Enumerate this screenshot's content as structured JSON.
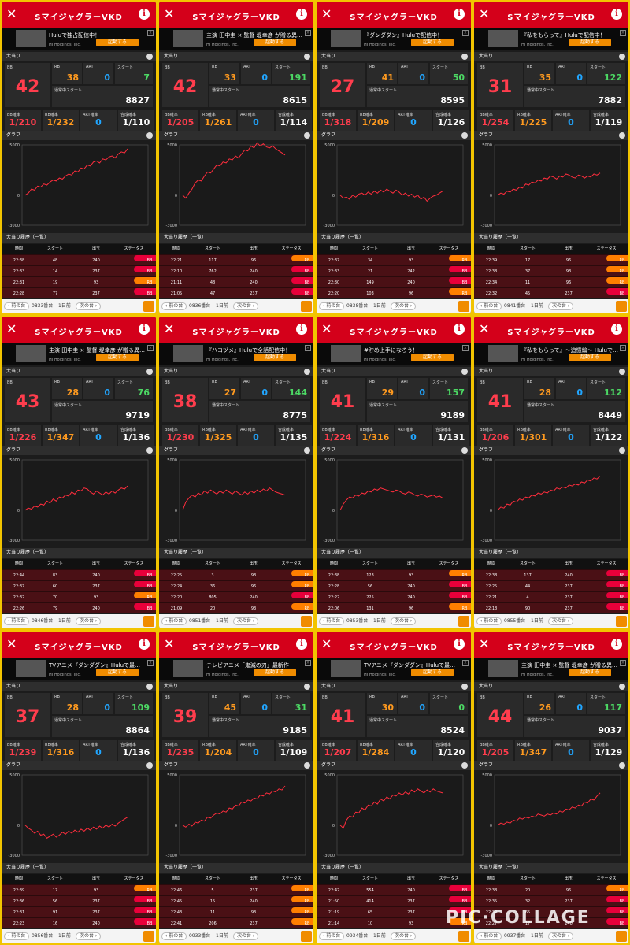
{
  "colors": {
    "header": "#d4001a",
    "bb": "#ff3d4d",
    "rb": "#ff9a1f",
    "art": "#21a6ff",
    "start": "#4cd964",
    "total": "#ffffff",
    "line": "#ff2d3d",
    "rb_badge": "#ff7f00",
    "bb_badge": "#e8003a"
  },
  "labels": {
    "title": "SマイジャグラーVKD",
    "close": "✕",
    "info": "i",
    "sec_hit": "大当り",
    "sec_graph": "グラフ",
    "sec_hist": "大当り履歴（一覧）",
    "bb": "BB",
    "rb": "RB",
    "art": "ART",
    "start": "スタート",
    "normal_start": "通常中スタート",
    "bb_rate": "BB確率",
    "rb_rate": "RB確率",
    "art_rate": "ART確率",
    "total_rate": "合成確率",
    "col_time": "時間",
    "col_start": "スタート",
    "col_out": "出玉",
    "col_status": "ステータス",
    "prev": "前の台",
    "next": "次の台",
    "day": "1日前",
    "ad_source": "HJ Holdings, Inc.",
    "ad_button": "起動する",
    "y_top": "5000",
    "y_zero": "0",
    "y_bottom": "-3000"
  },
  "watermark": "PIC·COLLAGE",
  "panels": [
    {
      "ad": "Huluで独占配信中！",
      "bb": "42",
      "rb": "38",
      "art": "0",
      "start": "7",
      "normal": "8827",
      "bbr": "1/210",
      "rbr": "1/232",
      "artr": "0",
      "total": "1/110",
      "machine": "0833番台",
      "graph": [
        0,
        200,
        600,
        500,
        900,
        800,
        1100,
        1000,
        1300,
        1500,
        1400,
        1700,
        1600,
        1900,
        2100,
        2000,
        2400,
        2300,
        2700,
        2600,
        3000,
        2900,
        3300,
        3400,
        3200,
        3600,
        3500,
        3800,
        3900,
        3700,
        4100,
        4300,
        4200,
        4600
      ],
      "rows": [
        [
          "22:38",
          "48",
          "240",
          "BB"
        ],
        [
          "22:33",
          "14",
          "237",
          "BB"
        ],
        [
          "22:31",
          "19",
          "93",
          "RB"
        ],
        [
          "22:28",
          "77",
          "237",
          "BB"
        ]
      ]
    },
    {
      "ad": "主演 田中圭 × 監督 堤幸彦 が贈る異…",
      "bb": "42",
      "rb": "33",
      "art": "0",
      "start": "191",
      "normal": "8615",
      "bbr": "1/205",
      "rbr": "1/261",
      "artr": "0",
      "total": "1/114",
      "machine": "0836番台",
      "graph": [
        0,
        -300,
        200,
        600,
        1200,
        1500,
        1400,
        1900,
        2300,
        2200,
        2600,
        3000,
        2900,
        3300,
        3200,
        3600,
        3500,
        3900,
        3700,
        4100,
        4500,
        4400,
        4900,
        4700,
        5200,
        4900,
        5100,
        4800,
        4700,
        4900,
        4600,
        4400,
        4200,
        4000
      ],
      "rows": [
        [
          "22:21",
          "117",
          "96",
          "RB"
        ],
        [
          "22:10",
          "762",
          "240",
          "BB"
        ],
        [
          "21:11",
          "48",
          "240",
          "BB"
        ],
        [
          "21:05",
          "47",
          "237",
          "BB"
        ]
      ]
    },
    {
      "ad": "『ダンダダン』Huluで配信中！",
      "bb": "27",
      "rb": "41",
      "art": "0",
      "start": "50",
      "normal": "8595",
      "bbr": "1/318",
      "rbr": "1/209",
      "artr": "0",
      "total": "1/126",
      "machine": "0838番台",
      "graph": [
        0,
        -300,
        -200,
        -400,
        0,
        -200,
        100,
        200,
        0,
        300,
        100,
        400,
        200,
        500,
        300,
        600,
        400,
        200,
        500,
        300,
        0,
        200,
        -100,
        100,
        -200,
        0,
        -400,
        -200,
        -600,
        -300,
        -100,
        0,
        200,
        400
      ],
      "rows": [
        [
          "22:37",
          "34",
          "93",
          "RB"
        ],
        [
          "22:33",
          "21",
          "242",
          "BB"
        ],
        [
          "22:30",
          "149",
          "240",
          "BB"
        ],
        [
          "22:20",
          "103",
          "96",
          "RB"
        ]
      ]
    },
    {
      "ad": "『私をもらって』Huluで配信中！",
      "bb": "31",
      "rb": "35",
      "art": "0",
      "start": "122",
      "normal": "7882",
      "bbr": "1/254",
      "rbr": "1/225",
      "artr": "0",
      "total": "1/119",
      "machine": "0841番台",
      "graph": [
        0,
        200,
        100,
        400,
        300,
        600,
        500,
        800,
        700,
        1100,
        1000,
        1300,
        1200,
        1500,
        1400,
        1700,
        1600,
        1900,
        1800,
        1600,
        1900,
        1800,
        2100,
        2000,
        1800,
        1700,
        2000,
        1900,
        1700,
        1900,
        1800,
        2100,
        2000,
        2200
      ],
      "rows": [
        [
          "22:39",
          "17",
          "96",
          "RB"
        ],
        [
          "22:38",
          "37",
          "93",
          "RB"
        ],
        [
          "22:34",
          "11",
          "96",
          "RB"
        ],
        [
          "22:32",
          "45",
          "237",
          "BB"
        ]
      ]
    },
    {
      "ad": "主演 田中圭 × 監督 堤幸彦 が贈る異…",
      "bb": "43",
      "rb": "28",
      "art": "0",
      "start": "76",
      "normal": "9719",
      "bbr": "1/226",
      "rbr": "1/347",
      "artr": "0",
      "total": "1/136",
      "machine": "0846番台",
      "graph": [
        0,
        200,
        100,
        400,
        300,
        600,
        500,
        900,
        700,
        1100,
        900,
        1300,
        1200,
        1500,
        1400,
        1800,
        1600,
        2000,
        1900,
        2200,
        2100,
        1800,
        1600,
        1900,
        1700,
        1500,
        1800,
        1600,
        1900,
        1700,
        2000,
        2200,
        2100,
        2400
      ],
      "rows": [
        [
          "22:44",
          "83",
          "240",
          "BB"
        ],
        [
          "22:37",
          "60",
          "237",
          "BB"
        ],
        [
          "22:32",
          "70",
          "93",
          "RB"
        ],
        [
          "22:26",
          "79",
          "240",
          "BB"
        ]
      ]
    },
    {
      "ad": "『ハコヅメ』Huluで全話配信中！",
      "bb": "38",
      "rb": "27",
      "art": "0",
      "start": "144",
      "normal": "8775",
      "bbr": "1/230",
      "rbr": "1/325",
      "artr": "0",
      "total": "1/135",
      "machine": "0851番台",
      "graph": [
        0,
        800,
        1200,
        1500,
        1300,
        1700,
        1500,
        1900,
        1700,
        2000,
        1800,
        1600,
        1900,
        1700,
        2000,
        1800,
        1600,
        1900,
        1700,
        1500,
        1800,
        1600,
        1900,
        1700,
        2000,
        1800,
        2100,
        1900,
        2200,
        2000,
        1800,
        1700,
        1600,
        1500
      ],
      "rows": [
        [
          "22:25",
          "3",
          "93",
          "RB"
        ],
        [
          "22:24",
          "36",
          "96",
          "RB"
        ],
        [
          "22:20",
          "805",
          "240",
          "BB"
        ],
        [
          "21:09",
          "20",
          "93",
          "RB"
        ]
      ]
    },
    {
      "ad": "#貯め上手になろう！",
      "bb": "41",
      "rb": "29",
      "art": "0",
      "start": "157",
      "normal": "9189",
      "bbr": "1/224",
      "rbr": "1/316",
      "artr": "0",
      "total": "1/131",
      "machine": "0853番台",
      "graph": [
        0,
        600,
        1000,
        1300,
        1200,
        1500,
        1400,
        1700,
        1600,
        1900,
        1800,
        2100,
        2000,
        2200,
        2100,
        2000,
        1900,
        1800,
        2000,
        1900,
        1700,
        1600,
        1800,
        1700,
        1500,
        1400,
        1600,
        1500,
        1300,
        1400,
        1500,
        1300,
        1400,
        1200
      ],
      "rows": [
        [
          "22:38",
          "123",
          "93",
          "RB"
        ],
        [
          "22:28",
          "56",
          "240",
          "BB"
        ],
        [
          "22:22",
          "225",
          "240",
          "BB"
        ],
        [
          "22:06",
          "131",
          "96",
          "RB"
        ]
      ]
    },
    {
      "ad": "『私をもらって』〜追憶編〜 Huluで…",
      "bb": "41",
      "rb": "28",
      "art": "0",
      "start": "112",
      "normal": "8449",
      "bbr": "1/206",
      "rbr": "1/301",
      "artr": "0",
      "total": "1/122",
      "machine": "0855番台",
      "graph": [
        0,
        300,
        200,
        600,
        500,
        900,
        800,
        1100,
        1000,
        1300,
        1200,
        1500,
        1400,
        1700,
        1600,
        1800,
        1700,
        2000,
        1900,
        2200,
        2100,
        2300,
        2200,
        2500,
        2400,
        2600,
        2500,
        2800,
        2700,
        3000,
        2900,
        3200,
        3100,
        3400
      ],
      "rows": [
        [
          "22:38",
          "137",
          "240",
          "BB"
        ],
        [
          "22:25",
          "44",
          "237",
          "BB"
        ],
        [
          "22:21",
          "4",
          "237",
          "BB"
        ],
        [
          "22:18",
          "90",
          "237",
          "BB"
        ]
      ]
    },
    {
      "ad": "TVアニメ『ダンダダン』Huluで最…",
      "bb": "37",
      "rb": "28",
      "art": "0",
      "start": "109",
      "normal": "8864",
      "bbr": "1/239",
      "rbr": "1/316",
      "artr": "0",
      "total": "1/136",
      "machine": "0856番台",
      "graph": [
        0,
        -300,
        -500,
        -800,
        -600,
        -1000,
        -900,
        -1300,
        -1100,
        -900,
        -1200,
        -1000,
        -700,
        -900,
        -600,
        -800,
        -500,
        -700,
        -400,
        -600,
        -300,
        -500,
        -200,
        -400,
        -100,
        -300,
        0,
        -200,
        100,
        -100,
        200,
        400,
        600,
        800
      ],
      "rows": [
        [
          "22:39",
          "17",
          "93",
          "RB"
        ],
        [
          "22:36",
          "56",
          "237",
          "BB"
        ],
        [
          "22:31",
          "91",
          "237",
          "BB"
        ],
        [
          "22:23",
          "16",
          "240",
          "BB"
        ]
      ]
    },
    {
      "ad": "テレビアニメ「鬼滅の刃」最新作",
      "bb": "39",
      "rb": "45",
      "art": "0",
      "start": "31",
      "normal": "9185",
      "bbr": "1/235",
      "rbr": "1/204",
      "artr": "0",
      "total": "1/109",
      "machine": "0933番台",
      "graph": [
        0,
        -200,
        100,
        -100,
        300,
        200,
        500,
        400,
        800,
        700,
        1000,
        1200,
        1100,
        1400,
        1300,
        1700,
        1600,
        2000,
        1900,
        2300,
        2200,
        2500,
        2400,
        2700,
        2600,
        3000,
        2900,
        3200,
        3100,
        3400,
        3300,
        3600,
        3500,
        3900
      ],
      "rows": [
        [
          "22:46",
          "5",
          "237",
          "RB"
        ],
        [
          "22:45",
          "15",
          "240",
          "RB"
        ],
        [
          "22:43",
          "11",
          "93",
          "RB"
        ],
        [
          "22:41",
          "206",
          "237",
          "RB"
        ]
      ]
    },
    {
      "ad": "TVアニメ『ダンダダン』Huluで最…",
      "bb": "41",
      "rb": "30",
      "art": "0",
      "start": "0",
      "normal": "8524",
      "bbr": "1/207",
      "rbr": "1/284",
      "artr": "0",
      "total": "1/120",
      "machine": "0934番台",
      "graph": [
        0,
        -300,
        500,
        900,
        800,
        1300,
        1200,
        1700,
        1500,
        2000,
        1900,
        2300,
        2100,
        2600,
        2400,
        2800,
        2600,
        3000,
        2900,
        3200,
        3000,
        3300,
        3100,
        3500,
        3300,
        3600,
        3400,
        3200,
        3500,
        3300,
        3600,
        3400,
        3300,
        3200
      ],
      "rows": [
        [
          "22:42",
          "554",
          "240",
          "BB"
        ],
        [
          "21:50",
          "414",
          "237",
          "BB"
        ],
        [
          "21:19",
          "65",
          "237",
          "BB"
        ],
        [
          "21:14",
          "10",
          "93",
          "RB"
        ]
      ]
    },
    {
      "ad": "主演 田中圭 × 監督 堤幸彦 が贈る異…",
      "bb": "44",
      "rb": "26",
      "art": "0",
      "start": "117",
      "normal": "9037",
      "bbr": "1/205",
      "rbr": "1/347",
      "artr": "0",
      "total": "1/129",
      "machine": "0937番台",
      "graph": [
        0,
        200,
        100,
        300,
        200,
        500,
        400,
        700,
        600,
        800,
        700,
        900,
        800,
        1100,
        1000,
        900,
        1100,
        1000,
        1200,
        1100,
        1400,
        1300,
        1600,
        1500,
        1800,
        1700,
        2000,
        1900,
        2300,
        2200,
        2600,
        2500,
        2900,
        3200
      ],
      "rows": [
        [
          "22:38",
          "20",
          "96",
          "RB"
        ],
        [
          "22:35",
          "32",
          "237",
          "BB"
        ],
        [
          "22:32",
          "65",
          "237",
          "BB"
        ],
        [
          "22:27",
          "17",
          "240",
          "BB"
        ]
      ]
    }
  ]
}
